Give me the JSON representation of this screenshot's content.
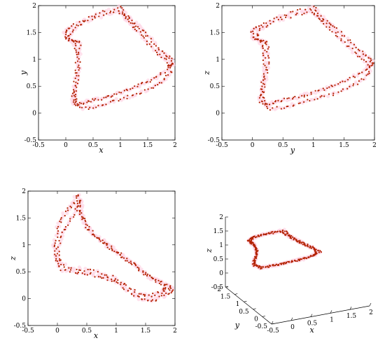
{
  "chart_data": [
    {
      "type": "scatter",
      "xlabel": "x",
      "ylabel": "y",
      "xlim": [
        -0.5,
        2
      ],
      "ylim": [
        -0.5,
        2
      ],
      "xticks": [
        -0.5,
        0,
        0.5,
        1,
        1.5,
        2
      ],
      "yticks": [
        -0.5,
        0,
        0.5,
        1,
        1.5,
        2
      ],
      "point_color": "#b22200",
      "glow_color": "#ffd6e6",
      "path": [
        [
          1.0,
          1.97
        ],
        [
          0.65,
          1.88
        ],
        [
          0.4,
          1.76
        ],
        [
          0.1,
          1.62
        ],
        [
          -0.02,
          1.52
        ],
        [
          0.02,
          1.38
        ],
        [
          0.16,
          1.35
        ],
        [
          0.25,
          1.3
        ],
        [
          0.26,
          1.0
        ],
        [
          0.22,
          0.7
        ],
        [
          0.18,
          0.48
        ],
        [
          0.16,
          0.3
        ],
        [
          0.2,
          0.15
        ],
        [
          0.35,
          0.2
        ],
        [
          0.5,
          0.25
        ],
        [
          0.7,
          0.28
        ],
        [
          0.9,
          0.35
        ],
        [
          1.1,
          0.42
        ],
        [
          1.3,
          0.5
        ],
        [
          1.5,
          0.58
        ],
        [
          1.7,
          0.7
        ],
        [
          1.9,
          0.85
        ],
        [
          1.97,
          0.92
        ],
        [
          1.9,
          1.05
        ],
        [
          1.75,
          1.15
        ],
        [
          1.58,
          1.35
        ],
        [
          1.4,
          1.55
        ],
        [
          1.25,
          1.68
        ],
        [
          1.1,
          1.82
        ],
        [
          1.0,
          1.97
        ]
      ],
      "path2": [
        [
          0.95,
          1.9
        ],
        [
          0.7,
          1.82
        ],
        [
          0.35,
          1.7
        ],
        [
          0.12,
          1.55
        ],
        [
          0.05,
          1.4
        ],
        [
          0.18,
          1.25
        ],
        [
          0.2,
          1.05
        ],
        [
          0.2,
          0.75
        ],
        [
          0.15,
          0.45
        ],
        [
          0.12,
          0.22
        ],
        [
          0.3,
          0.08
        ],
        [
          0.55,
          0.12
        ],
        [
          0.8,
          0.2
        ],
        [
          1.05,
          0.28
        ],
        [
          1.3,
          0.35
        ],
        [
          1.55,
          0.45
        ],
        [
          1.75,
          0.58
        ],
        [
          1.92,
          0.75
        ],
        [
          1.88,
          0.95
        ],
        [
          1.7,
          1.1
        ],
        [
          1.5,
          1.3
        ],
        [
          1.35,
          1.5
        ],
        [
          1.2,
          1.65
        ],
        [
          1.08,
          1.78
        ],
        [
          0.95,
          1.9
        ]
      ],
      "jitter": 0.05
    },
    {
      "type": "scatter",
      "xlabel": "y",
      "ylabel": "z",
      "xlim": [
        -0.5,
        2
      ],
      "ylim": [
        -0.5,
        2
      ],
      "xticks": [
        -0.5,
        0,
        0.5,
        1,
        1.5,
        2
      ],
      "yticks": [
        -0.5,
        0,
        0.5,
        1,
        1.5,
        2
      ],
      "point_color": "#b22200",
      "glow_color": "#ffd6e6",
      "path": [
        [
          1.0,
          1.97
        ],
        [
          0.65,
          1.88
        ],
        [
          0.4,
          1.76
        ],
        [
          0.1,
          1.62
        ],
        [
          -0.02,
          1.52
        ],
        [
          0.02,
          1.38
        ],
        [
          0.16,
          1.35
        ],
        [
          0.25,
          1.3
        ],
        [
          0.26,
          1.0
        ],
        [
          0.22,
          0.7
        ],
        [
          0.18,
          0.48
        ],
        [
          0.16,
          0.3
        ],
        [
          0.2,
          0.15
        ],
        [
          0.35,
          0.2
        ],
        [
          0.5,
          0.25
        ],
        [
          0.7,
          0.28
        ],
        [
          0.9,
          0.35
        ],
        [
          1.1,
          0.42
        ],
        [
          1.3,
          0.5
        ],
        [
          1.5,
          0.58
        ],
        [
          1.7,
          0.7
        ],
        [
          1.9,
          0.85
        ],
        [
          1.97,
          0.92
        ],
        [
          1.9,
          1.05
        ],
        [
          1.75,
          1.15
        ],
        [
          1.58,
          1.35
        ],
        [
          1.4,
          1.55
        ],
        [
          1.25,
          1.68
        ],
        [
          1.1,
          1.82
        ],
        [
          1.0,
          1.97
        ]
      ],
      "path2": [
        [
          0.95,
          1.9
        ],
        [
          0.7,
          1.82
        ],
        [
          0.35,
          1.7
        ],
        [
          0.12,
          1.55
        ],
        [
          0.05,
          1.4
        ],
        [
          0.18,
          1.25
        ],
        [
          0.2,
          1.05
        ],
        [
          0.2,
          0.75
        ],
        [
          0.15,
          0.45
        ],
        [
          0.12,
          0.22
        ],
        [
          0.3,
          0.08
        ],
        [
          0.55,
          0.12
        ],
        [
          0.8,
          0.2
        ],
        [
          1.05,
          0.28
        ],
        [
          1.3,
          0.35
        ],
        [
          1.55,
          0.45
        ],
        [
          1.75,
          0.58
        ],
        [
          1.92,
          0.75
        ],
        [
          1.88,
          0.95
        ],
        [
          1.7,
          1.1
        ],
        [
          1.5,
          1.3
        ],
        [
          1.35,
          1.5
        ],
        [
          1.2,
          1.65
        ],
        [
          1.08,
          1.78
        ],
        [
          0.95,
          1.9
        ]
      ],
      "jitter": 0.05
    },
    {
      "type": "scatter",
      "xlabel": "x",
      "ylabel": "z",
      "xlim": [
        -0.5,
        2
      ],
      "ylim": [
        -0.5,
        2
      ],
      "xticks": [
        -0.5,
        0,
        0.5,
        1,
        1.5,
        2
      ],
      "yticks": [
        -0.5,
        0,
        0.5,
        1,
        1.5,
        2
      ],
      "point_color": "#b22200",
      "glow_color": "#ffd6e6",
      "path": [
        [
          0.35,
          1.95
        ],
        [
          0.25,
          1.75
        ],
        [
          0.1,
          1.55
        ],
        [
          0.0,
          1.3
        ],
        [
          -0.05,
          1.0
        ],
        [
          -0.03,
          0.75
        ],
        [
          0.05,
          0.55
        ],
        [
          0.3,
          0.5
        ],
        [
          0.55,
          0.45
        ],
        [
          0.8,
          0.4
        ],
        [
          1.0,
          0.3
        ],
        [
          1.2,
          0.15
        ],
        [
          1.4,
          0.0
        ],
        [
          1.6,
          -0.05
        ],
        [
          1.8,
          0.05
        ],
        [
          1.95,
          0.15
        ],
        [
          1.9,
          0.25
        ],
        [
          1.75,
          0.3
        ],
        [
          1.55,
          0.4
        ],
        [
          1.35,
          0.6
        ],
        [
          1.15,
          0.75
        ],
        [
          0.95,
          0.9
        ],
        [
          0.8,
          1.05
        ],
        [
          0.6,
          1.2
        ],
        [
          0.45,
          1.45
        ],
        [
          0.35,
          1.65
        ],
        [
          0.35,
          1.95
        ]
      ],
      "path2": [
        [
          0.4,
          1.85
        ],
        [
          0.3,
          1.6
        ],
        [
          0.15,
          1.35
        ],
        [
          0.05,
          1.1
        ],
        [
          0.0,
          0.8
        ],
        [
          0.1,
          0.62
        ],
        [
          0.4,
          0.55
        ],
        [
          0.7,
          0.5
        ],
        [
          0.95,
          0.4
        ],
        [
          1.15,
          0.25
        ],
        [
          1.35,
          0.1
        ],
        [
          1.55,
          0.05
        ],
        [
          1.75,
          0.12
        ],
        [
          1.85,
          0.2
        ],
        [
          1.65,
          0.35
        ],
        [
          1.45,
          0.5
        ],
        [
          1.25,
          0.68
        ],
        [
          1.05,
          0.82
        ],
        [
          0.85,
          1.0
        ],
        [
          0.65,
          1.15
        ],
        [
          0.5,
          1.35
        ],
        [
          0.4,
          1.6
        ],
        [
          0.4,
          1.85
        ]
      ],
      "jitter": 0.06
    },
    {
      "type": "scatter",
      "projection": "3d",
      "xlabel": "x",
      "ylabel": "y",
      "zlabel": "z",
      "xlim": [
        -0.5,
        2
      ],
      "ylim": [
        -0.5,
        2
      ],
      "zlim": [
        -0.5,
        2
      ],
      "xticks": [
        -0.5,
        0,
        0.5,
        1,
        1.5,
        2
      ],
      "yticks": [
        -0.5,
        0,
        0.5,
        1,
        1.5,
        2
      ],
      "zticks": [
        -0.5,
        0,
        0.5,
        1,
        1.5,
        2
      ],
      "point_color": "#b22200",
      "glow_color": "#ffd6e6",
      "path": [
        [
          1.0,
          1.0,
          1.97
        ],
        [
          0.6,
          0.6,
          1.85
        ],
        [
          0.2,
          0.3,
          1.7
        ],
        [
          0.0,
          0.0,
          1.5
        ],
        [
          0.15,
          0.15,
          1.3
        ],
        [
          0.25,
          0.25,
          1.0
        ],
        [
          0.2,
          0.2,
          0.6
        ],
        [
          0.15,
          0.2,
          0.3
        ],
        [
          0.4,
          0.3,
          0.2
        ],
        [
          0.8,
          0.5,
          0.3
        ],
        [
          1.2,
          0.8,
          0.45
        ],
        [
          1.6,
          1.2,
          0.6
        ],
        [
          1.95,
          1.5,
          0.85
        ],
        [
          1.8,
          1.6,
          1.1
        ],
        [
          1.5,
          1.5,
          1.4
        ],
        [
          1.25,
          1.3,
          1.65
        ],
        [
          1.0,
          1.0,
          1.97
        ]
      ],
      "path2": [
        [
          0.95,
          0.9,
          1.9
        ],
        [
          0.5,
          0.55,
          1.78
        ],
        [
          0.15,
          0.25,
          1.6
        ],
        [
          0.05,
          0.05,
          1.4
        ],
        [
          0.2,
          0.2,
          1.15
        ],
        [
          0.22,
          0.22,
          0.8
        ],
        [
          0.15,
          0.18,
          0.45
        ],
        [
          0.3,
          0.28,
          0.15
        ],
        [
          0.65,
          0.45,
          0.22
        ],
        [
          1.05,
          0.7,
          0.35
        ],
        [
          1.45,
          1.05,
          0.5
        ],
        [
          1.8,
          1.35,
          0.7
        ],
        [
          1.85,
          1.55,
          0.95
        ],
        [
          1.6,
          1.5,
          1.25
        ],
        [
          1.35,
          1.4,
          1.5
        ],
        [
          1.1,
          1.15,
          1.75
        ],
        [
          0.95,
          0.9,
          1.9
        ]
      ],
      "jitter": 0.05
    }
  ]
}
